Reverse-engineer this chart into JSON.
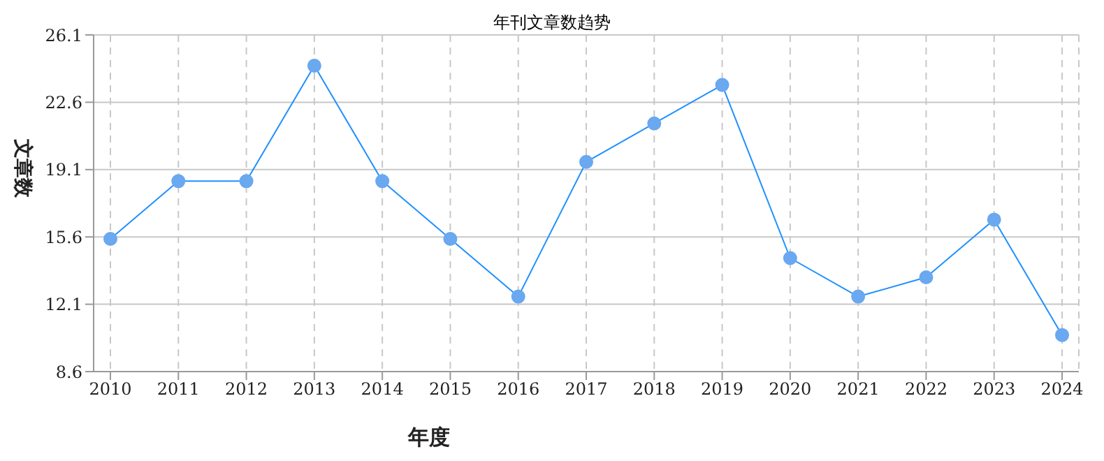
{
  "chart_data": {
    "type": "line",
    "title": "年刊文章数趋势",
    "xlabel": "年度",
    "ylabel": "文章数",
    "categories": [
      "2010",
      "2011",
      "2012",
      "2013",
      "2014",
      "2015",
      "2016",
      "2017",
      "2018",
      "2019",
      "2020",
      "2021",
      "2022",
      "2023",
      "2024"
    ],
    "series": [
      {
        "color": "#1e90ff",
        "values": [
          15.5,
          18.5,
          18.5,
          24.5,
          18.5,
          15.5,
          12.5,
          19.5,
          21.5,
          23.5,
          14.5,
          12.5,
          13.5,
          16.5,
          10.5
        ]
      }
    ],
    "ylim": [
      8.6,
      26.1
    ],
    "yticks": [
      8.6,
      12.1,
      15.6,
      19.1,
      22.6,
      26.1
    ],
    "grid": true,
    "marker": "circle",
    "line_style": "solid"
  }
}
